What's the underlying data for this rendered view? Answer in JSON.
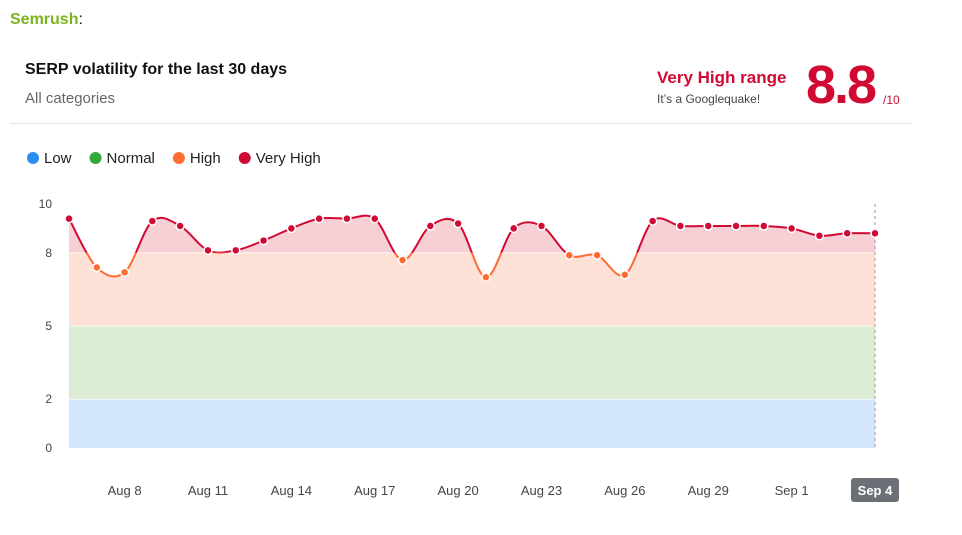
{
  "chart_data": {
    "type": "line",
    "brand": "Semrush",
    "brand_suffix": ":",
    "title": "SERP volatility for the last 30 days",
    "subtitle": "All categories",
    "range_title": "Very High range",
    "range_note": "It’s a Googlequake!",
    "score": 8.8,
    "score_suffix": "/10",
    "categories": [
      null,
      null,
      "Aug 8",
      null,
      null,
      "Aug 11",
      null,
      null,
      "Aug 14",
      null,
      null,
      "Aug 17",
      null,
      null,
      "Aug 20",
      null,
      null,
      "Aug 23",
      null,
      null,
      "Aug 26",
      null,
      null,
      "Aug 29",
      null,
      null,
      "Sep 1",
      null,
      null,
      "Sep 4"
    ],
    "values": [
      9.4,
      7.4,
      7.2,
      9.3,
      9.1,
      8.1,
      8.1,
      8.5,
      9.0,
      9.4,
      9.4,
      9.4,
      7.7,
      9.1,
      9.2,
      7.0,
      9.0,
      9.1,
      7.9,
      7.9,
      7.1,
      9.3,
      9.1,
      9.1,
      9.1,
      9.1,
      9.0,
      8.7,
      8.8,
      8.8
    ],
    "legend": [
      {
        "name": "Low",
        "color": "#2b8ff0",
        "fill": "#d4e6fb"
      },
      {
        "name": "Normal",
        "color": "#34a83a",
        "fill": "#dcebd4"
      },
      {
        "name": "High",
        "color": "#ff6b33",
        "fill": "#fde0d6"
      },
      {
        "name": "Very High",
        "color": "#d10a33",
        "fill": "#f7d0d6"
      }
    ],
    "ylim": [
      0,
      10
    ],
    "yticks": [
      0,
      2,
      5,
      8,
      10
    ],
    "highlight": 29
  }
}
